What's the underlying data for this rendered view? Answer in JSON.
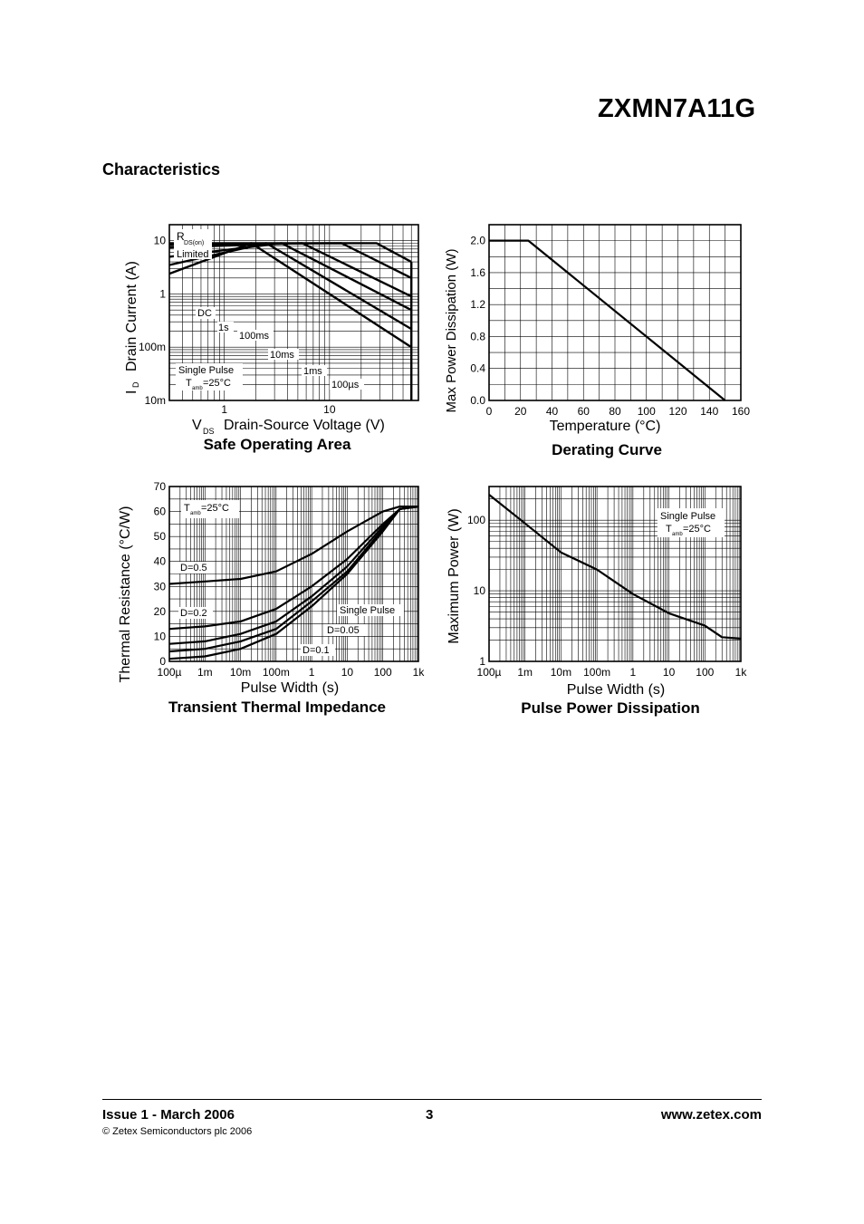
{
  "header": {
    "part_number": "ZXMN7A11G",
    "section": "Characteristics"
  },
  "footer": {
    "issue": "Issue 1 - March 2006",
    "page": "3",
    "website": "www.zetex.com",
    "copyright": "© Zetex Semiconductors plc 2006"
  },
  "chart_data": [
    {
      "type": "line",
      "title": "Safe Operating Area",
      "xlabel": "Drain-Source Voltage (V)",
      "xlabel_symbol": "V",
      "xlabel_sub": "DS",
      "ylabel": "Drain Current (A)",
      "ylabel_symbol": "I",
      "ylabel_sub": "D",
      "xscale": "log",
      "yscale": "log",
      "xlim": [
        0.3,
        70
      ],
      "ylim": [
        0.01,
        20
      ],
      "xticks": [
        {
          "v": 1,
          "l": "1"
        },
        {
          "v": 10,
          "l": "10"
        }
      ],
      "yticks": [
        {
          "v": 10,
          "l": "10"
        },
        {
          "v": 1,
          "l": "1"
        },
        {
          "v": 0.1,
          "l": "100m"
        },
        {
          "v": 0.01,
          "l": "10m"
        }
      ],
      "grid": true,
      "series": [
        {
          "name": "DC",
          "x": [
            0.3,
            1.8,
            60
          ],
          "y": [
            2.4,
            9.0,
            0.1
          ]
        },
        {
          "name": "1s",
          "x": [
            0.3,
            2.5,
            60
          ],
          "y": [
            3.5,
            9.0,
            0.22
          ]
        },
        {
          "name": "100ms",
          "x": [
            0.3,
            3.5,
            60
          ],
          "y": [
            5.0,
            9.0,
            0.5
          ]
        },
        {
          "name": "10ms",
          "x": [
            0.3,
            5.5,
            60
          ],
          "y": [
            7.5,
            9.0,
            0.9
          ]
        },
        {
          "name": "1ms",
          "x": [
            0.3,
            13,
            60
          ],
          "y": [
            8.5,
            9.0,
            2.0
          ]
        },
        {
          "name": "100µs",
          "x": [
            0.3,
            28,
            60
          ],
          "y": [
            9.0,
            9.0,
            4.0
          ]
        }
      ],
      "annotations": [
        "RDS(on)",
        "Limited",
        "DC",
        "1s",
        "100ms",
        "10ms",
        "1ms",
        "100µs",
        "Single Pulse",
        "Tamb=25°C"
      ]
    },
    {
      "type": "line",
      "title": "Derating Curve",
      "xlabel": "Temperature (°C)",
      "ylabel": "Max Power Dissipation (W)",
      "xlim": [
        0,
        160
      ],
      "ylim": [
        0,
        2.2
      ],
      "xticks": [
        0,
        20,
        40,
        60,
        80,
        100,
        120,
        140,
        160
      ],
      "yticks": [
        {
          "v": 0,
          "l": "0.0"
        },
        {
          "v": 0.4,
          "l": "0.4"
        },
        {
          "v": 0.8,
          "l": "0.8"
        },
        {
          "v": 1.2,
          "l": "1.2"
        },
        {
          "v": 1.6,
          "l": "1.6"
        },
        {
          "v": 2.0,
          "l": "2.0"
        }
      ],
      "grid": true,
      "series": [
        {
          "x": [
            0,
            25,
            150
          ],
          "y": [
            2.0,
            2.0,
            0
          ]
        }
      ]
    },
    {
      "type": "line",
      "title": "Transient Thermal Impedance",
      "xlabel": "Pulse Width (s)",
      "ylabel": "Thermal Resistance (°C/W)",
      "xscale": "log",
      "xlim": [
        0.0001,
        1000
      ],
      "ylim": [
        0,
        70
      ],
      "xticks": [
        {
          "v": 0.0001,
          "l": "100µ"
        },
        {
          "v": 0.001,
          "l": "1m"
        },
        {
          "v": 0.01,
          "l": "10m"
        },
        {
          "v": 0.1,
          "l": "100m"
        },
        {
          "v": 1,
          "l": "1"
        },
        {
          "v": 10,
          "l": "10"
        },
        {
          "v": 100,
          "l": "100"
        },
        {
          "v": 1000,
          "l": "1k"
        }
      ],
      "yticks": [
        0,
        10,
        20,
        30,
        40,
        50,
        60,
        70
      ],
      "grid": true,
      "series": [
        {
          "name": "D=0.5",
          "x": [
            0.0001,
            0.001,
            0.01,
            0.1,
            1,
            10,
            100,
            300,
            1000
          ],
          "y": [
            31,
            32,
            33,
            36,
            43,
            52,
            60,
            62,
            62
          ]
        },
        {
          "name": "D=0.2",
          "x": [
            0.0001,
            0.001,
            0.01,
            0.1,
            1,
            10,
            100,
            300,
            1000
          ],
          "y": [
            13,
            14,
            16,
            21,
            30,
            41,
            55,
            61,
            62
          ]
        },
        {
          "name": "D=0.1",
          "x": [
            0.0001,
            0.001,
            0.01,
            0.1,
            1,
            10,
            100,
            300,
            1000
          ],
          "y": [
            7,
            8,
            11,
            16,
            26,
            38,
            54,
            61,
            62
          ]
        },
        {
          "name": "D=0.05",
          "x": [
            0.0001,
            0.001,
            0.01,
            0.1,
            1,
            10,
            100,
            300,
            1000
          ],
          "y": [
            4,
            5,
            8,
            13,
            24,
            36,
            53,
            61,
            62
          ]
        },
        {
          "name": "Single Pulse",
          "x": [
            0.0001,
            0.001,
            0.01,
            0.1,
            1,
            10,
            100,
            300,
            1000
          ],
          "y": [
            1,
            2,
            5,
            11,
            22,
            35,
            52,
            61,
            62
          ]
        }
      ],
      "annotations": [
        "Tamb=25°C",
        "D=0.5",
        "D=0.2",
        "Single Pulse",
        "D=0.05",
        "D=0.1"
      ]
    },
    {
      "type": "line",
      "title": "Pulse Power Dissipation",
      "xlabel": "Pulse Width (s)",
      "ylabel": "Maximum Power (W)",
      "xscale": "log",
      "yscale": "log",
      "xlim": [
        0.0001,
        1000
      ],
      "ylim": [
        1,
        300
      ],
      "xticks": [
        {
          "v": 0.0001,
          "l": "100µ"
        },
        {
          "v": 0.001,
          "l": "1m"
        },
        {
          "v": 0.01,
          "l": "10m"
        },
        {
          "v": 0.1,
          "l": "100m"
        },
        {
          "v": 1,
          "l": "1"
        },
        {
          "v": 10,
          "l": "10"
        },
        {
          "v": 100,
          "l": "100"
        },
        {
          "v": 1000,
          "l": "1k"
        }
      ],
      "yticks": [
        {
          "v": 1,
          "l": "1"
        },
        {
          "v": 10,
          "l": "10"
        },
        {
          "v": 100,
          "l": "100"
        }
      ],
      "grid": true,
      "series": [
        {
          "name": "Single Pulse",
          "x": [
            0.0001,
            0.001,
            0.01,
            0.1,
            1,
            10,
            100,
            300,
            1000
          ],
          "y": [
            230,
            90,
            35,
            20,
            9,
            4.8,
            3.2,
            2.2,
            2.1
          ]
        }
      ],
      "annotations": [
        "Single Pulse",
        "Tamb=25°C"
      ]
    }
  ]
}
